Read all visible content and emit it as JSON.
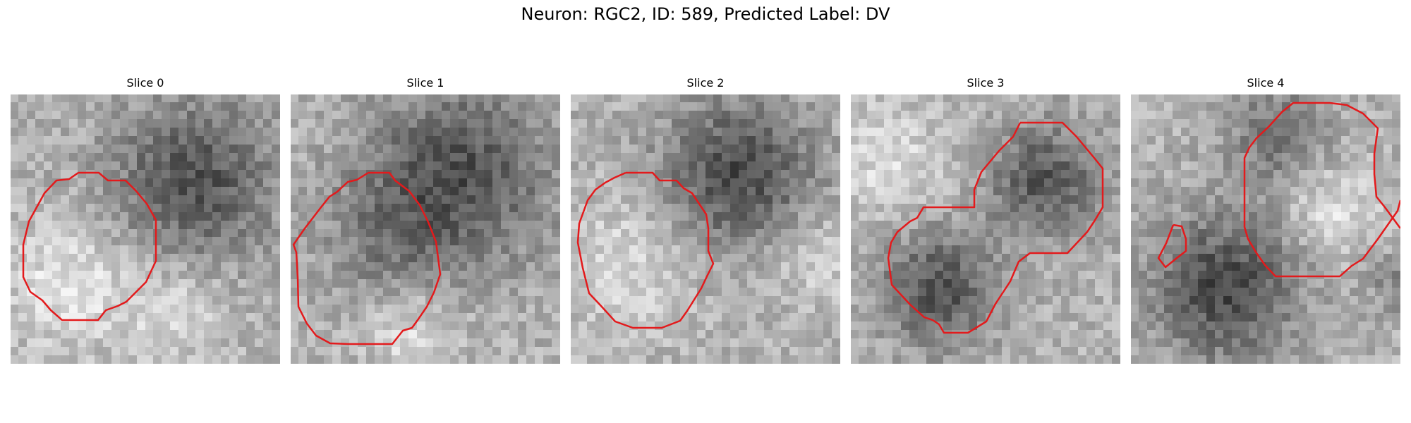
{
  "figure": {
    "title": "Neuron: RGC2, ID: 589, Predicted Label: DV"
  },
  "panels": [
    {
      "title": "Slice 0"
    },
    {
      "title": "Slice 1"
    },
    {
      "title": "Slice 2"
    },
    {
      "title": "Slice 3"
    },
    {
      "title": "Slice 4"
    }
  ],
  "colors": {
    "contour": "#e31a1c",
    "background": "#ffffff"
  }
}
